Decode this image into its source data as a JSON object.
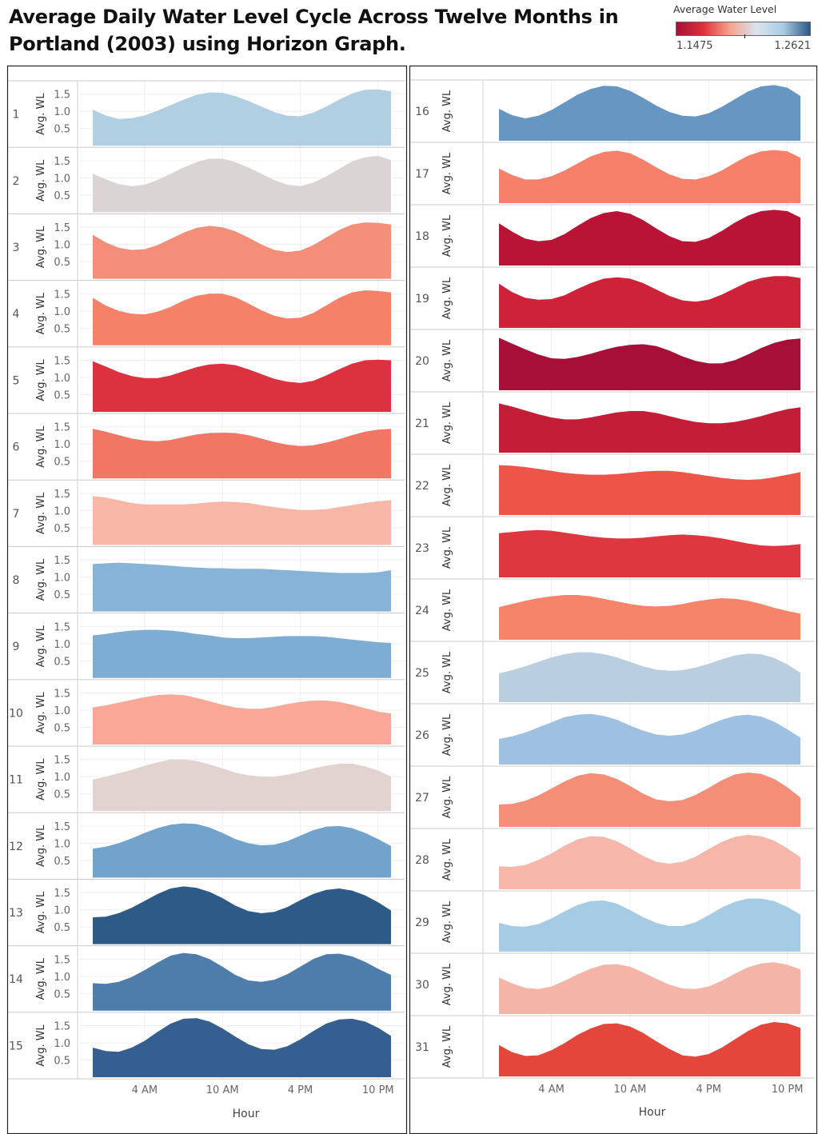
{
  "title": "Average Daily Water Level Cycle Across Twelve Months in Portland (2003) using Horizon Graph.",
  "legend": {
    "title": "Average Water Level",
    "min_label": "1.1475",
    "max_label": "1.2621",
    "colors": [
      "#a50f36",
      "#e0303a",
      "#f5a38e",
      "#d8e4ee",
      "#a9cbe4",
      "#2a5784"
    ]
  },
  "chart_data": {
    "type": "area",
    "x_field": "Hour",
    "xlabel": "Hour",
    "ylabel": "Avg. WL",
    "x_ticks": [
      "4 AM",
      "10 AM",
      "4 PM",
      "10 PM"
    ],
    "x_tick_hours": [
      4,
      10,
      16,
      22
    ],
    "x_range": [
      0,
      23
    ],
    "left_y_ticks": [
      0.5,
      1.0,
      1.5
    ],
    "left_y_tick_labels": [
      "0.5",
      "1.0",
      "1.5"
    ],
    "left_ylim": [
      0,
      1.75
    ],
    "right_ylim": [
      0,
      1.75
    ],
    "series": [
      {
        "name": "1",
        "color": "#b0cfe3",
        "values": [
          1.05,
          0.88,
          0.78,
          0.8,
          0.88,
          1.02,
          1.18,
          1.34,
          1.48,
          1.55,
          1.54,
          1.44,
          1.3,
          1.14,
          0.98,
          0.87,
          0.86,
          0.96,
          1.14,
          1.34,
          1.52,
          1.63,
          1.64,
          1.58
        ]
      },
      {
        "name": "2",
        "color": "#dad5d4",
        "values": [
          1.12,
          0.96,
          0.82,
          0.76,
          0.8,
          0.94,
          1.12,
          1.3,
          1.46,
          1.56,
          1.56,
          1.46,
          1.3,
          1.12,
          0.94,
          0.8,
          0.76,
          0.86,
          1.04,
          1.26,
          1.48,
          1.6,
          1.64,
          1.52
        ]
      },
      {
        "name": "3",
        "color": "#f58e78",
        "values": [
          1.28,
          1.06,
          0.9,
          0.84,
          0.86,
          0.98,
          1.16,
          1.34,
          1.48,
          1.54,
          1.5,
          1.38,
          1.2,
          1.0,
          0.84,
          0.78,
          0.82,
          0.98,
          1.2,
          1.42,
          1.58,
          1.64,
          1.63,
          1.58
        ]
      },
      {
        "name": "4",
        "color": "#f58168",
        "values": [
          1.38,
          1.16,
          1.0,
          0.92,
          0.9,
          0.98,
          1.12,
          1.3,
          1.44,
          1.5,
          1.5,
          1.4,
          1.22,
          1.02,
          0.86,
          0.78,
          0.8,
          0.94,
          1.16,
          1.38,
          1.54,
          1.6,
          1.58,
          1.54
        ]
      },
      {
        "name": "5",
        "color": "#dc313f",
        "values": [
          1.47,
          1.32,
          1.16,
          1.04,
          0.98,
          0.98,
          1.06,
          1.18,
          1.3,
          1.38,
          1.4,
          1.36,
          1.24,
          1.1,
          0.96,
          0.88,
          0.84,
          0.9,
          1.06,
          1.24,
          1.4,
          1.5,
          1.52,
          1.5
        ]
      },
      {
        "name": "6",
        "color": "#f27664",
        "values": [
          1.44,
          1.36,
          1.26,
          1.16,
          1.1,
          1.08,
          1.12,
          1.2,
          1.28,
          1.32,
          1.33,
          1.32,
          1.26,
          1.16,
          1.06,
          0.98,
          0.94,
          0.96,
          1.04,
          1.14,
          1.26,
          1.36,
          1.42,
          1.44
        ]
      },
      {
        "name": "7",
        "color": "#f8b6a6",
        "values": [
          1.42,
          1.38,
          1.3,
          1.22,
          1.18,
          1.18,
          1.18,
          1.18,
          1.2,
          1.24,
          1.26,
          1.25,
          1.22,
          1.16,
          1.1,
          1.05,
          1.02,
          1.02,
          1.04,
          1.1,
          1.16,
          1.22,
          1.27,
          1.3
        ]
      },
      {
        "name": "8",
        "color": "#86b3d7",
        "values": [
          1.38,
          1.4,
          1.42,
          1.4,
          1.38,
          1.36,
          1.33,
          1.3,
          1.28,
          1.26,
          1.26,
          1.24,
          1.24,
          1.24,
          1.22,
          1.2,
          1.18,
          1.16,
          1.14,
          1.12,
          1.12,
          1.12,
          1.14,
          1.2
        ]
      },
      {
        "name": "9",
        "color": "#7eadd3",
        "values": [
          1.24,
          1.28,
          1.34,
          1.38,
          1.4,
          1.4,
          1.38,
          1.34,
          1.28,
          1.24,
          1.18,
          1.16,
          1.16,
          1.18,
          1.2,
          1.22,
          1.22,
          1.22,
          1.2,
          1.16,
          1.12,
          1.08,
          1.04,
          1.02
        ]
      },
      {
        "name": "10",
        "color": "#f9a898",
        "values": [
          1.08,
          1.14,
          1.22,
          1.3,
          1.38,
          1.44,
          1.46,
          1.44,
          1.36,
          1.26,
          1.16,
          1.08,
          1.04,
          1.04,
          1.1,
          1.18,
          1.24,
          1.28,
          1.28,
          1.24,
          1.16,
          1.06,
          0.96,
          0.9
        ]
      },
      {
        "name": "11",
        "color": "#e0d3d0",
        "values": [
          0.92,
          1.0,
          1.1,
          1.2,
          1.32,
          1.42,
          1.5,
          1.5,
          1.46,
          1.36,
          1.24,
          1.12,
          1.04,
          1.0,
          1.0,
          1.06,
          1.14,
          1.24,
          1.32,
          1.38,
          1.38,
          1.3,
          1.18,
          1.0
        ]
      },
      {
        "name": "12",
        "color": "#71a3cc",
        "values": [
          0.84,
          0.9,
          1.0,
          1.14,
          1.3,
          1.44,
          1.54,
          1.58,
          1.56,
          1.46,
          1.3,
          1.12,
          1.0,
          0.94,
          0.96,
          1.06,
          1.22,
          1.38,
          1.48,
          1.5,
          1.44,
          1.3,
          1.12,
          0.92
        ]
      },
      {
        "name": "13",
        "color": "#2d5a87",
        "values": [
          0.78,
          0.8,
          0.9,
          1.06,
          1.26,
          1.46,
          1.62,
          1.68,
          1.64,
          1.52,
          1.34,
          1.12,
          0.96,
          0.9,
          0.94,
          1.08,
          1.28,
          1.46,
          1.58,
          1.62,
          1.56,
          1.42,
          1.22,
          0.98
        ]
      },
      {
        "name": "14",
        "color": "#4e7cab",
        "values": [
          0.8,
          0.78,
          0.84,
          0.98,
          1.18,
          1.4,
          1.6,
          1.68,
          1.64,
          1.5,
          1.28,
          1.04,
          0.88,
          0.84,
          0.9,
          1.06,
          1.28,
          1.5,
          1.64,
          1.66,
          1.58,
          1.42,
          1.22,
          1.04
        ]
      },
      {
        "name": "15",
        "color": "#345f90",
        "values": [
          0.86,
          0.76,
          0.74,
          0.86,
          1.06,
          1.32,
          1.56,
          1.7,
          1.72,
          1.62,
          1.42,
          1.18,
          0.96,
          0.82,
          0.8,
          0.9,
          1.1,
          1.34,
          1.56,
          1.68,
          1.7,
          1.62,
          1.44,
          1.2
        ]
      },
      {
        "name": "16",
        "color": "#6697c2",
        "values": [
          1.0,
          0.8,
          0.7,
          0.78,
          0.96,
          1.2,
          1.44,
          1.62,
          1.72,
          1.7,
          1.56,
          1.34,
          1.1,
          0.9,
          0.78,
          0.76,
          0.86,
          1.06,
          1.3,
          1.54,
          1.7,
          1.74,
          1.66,
          1.4
        ]
      },
      {
        "name": "17",
        "color": "#f6806a",
        "values": [
          1.08,
          0.88,
          0.74,
          0.74,
          0.84,
          1.02,
          1.24,
          1.46,
          1.6,
          1.64,
          1.56,
          1.36,
          1.12,
          0.9,
          0.76,
          0.74,
          0.84,
          1.02,
          1.26,
          1.48,
          1.62,
          1.66,
          1.62,
          1.42
        ]
      },
      {
        "name": "18",
        "color": "#b91436",
        "values": [
          1.32,
          1.06,
          0.84,
          0.76,
          0.8,
          0.98,
          1.24,
          1.48,
          1.64,
          1.7,
          1.62,
          1.42,
          1.16,
          0.92,
          0.76,
          0.74,
          0.86,
          1.08,
          1.34,
          1.56,
          1.7,
          1.74,
          1.7,
          1.5
        ]
      },
      {
        "name": "19",
        "color": "#cd2237",
        "values": [
          1.38,
          1.12,
          0.94,
          0.88,
          0.9,
          1.02,
          1.22,
          1.4,
          1.54,
          1.58,
          1.54,
          1.4,
          1.2,
          1.0,
          0.86,
          0.82,
          0.88,
          1.04,
          1.24,
          1.44,
          1.56,
          1.62,
          1.62,
          1.56
        ]
      },
      {
        "name": "20",
        "color": "#a50f38",
        "values": [
          1.64,
          1.46,
          1.28,
          1.12,
          1.0,
          0.98,
          1.04,
          1.14,
          1.26,
          1.36,
          1.42,
          1.44,
          1.38,
          1.24,
          1.06,
          0.92,
          0.84,
          0.84,
          0.94,
          1.12,
          1.32,
          1.48,
          1.58,
          1.62
        ]
      },
      {
        "name": "21",
        "color": "#c31d37",
        "values": [
          1.54,
          1.44,
          1.32,
          1.2,
          1.1,
          1.04,
          1.04,
          1.1,
          1.18,
          1.26,
          1.3,
          1.3,
          1.24,
          1.14,
          1.04,
          0.96,
          0.92,
          0.92,
          0.96,
          1.04,
          1.14,
          1.26,
          1.36,
          1.42
        ]
      },
      {
        "name": "22",
        "color": "#ee5549",
        "values": [
          1.56,
          1.54,
          1.5,
          1.44,
          1.38,
          1.32,
          1.28,
          1.26,
          1.26,
          1.28,
          1.32,
          1.36,
          1.38,
          1.38,
          1.34,
          1.28,
          1.22,
          1.16,
          1.12,
          1.1,
          1.12,
          1.18,
          1.26,
          1.34
        ]
      },
      {
        "name": "23",
        "color": "#df3740",
        "values": [
          1.38,
          1.42,
          1.46,
          1.48,
          1.46,
          1.4,
          1.34,
          1.28,
          1.24,
          1.22,
          1.22,
          1.24,
          1.28,
          1.32,
          1.34,
          1.32,
          1.28,
          1.22,
          1.14,
          1.06,
          1.0,
          0.98,
          1.0,
          1.04
        ]
      },
      {
        "name": "24",
        "color": "#f58469",
        "values": [
          1.02,
          1.12,
          1.22,
          1.3,
          1.36,
          1.4,
          1.4,
          1.36,
          1.28,
          1.2,
          1.12,
          1.06,
          1.04,
          1.06,
          1.12,
          1.2,
          1.26,
          1.3,
          1.28,
          1.22,
          1.12,
          1.0,
          0.9,
          0.82
        ]
      },
      {
        "name": "25",
        "color": "#b9cfdf",
        "values": [
          0.9,
          1.0,
          1.12,
          1.26,
          1.4,
          1.5,
          1.56,
          1.56,
          1.5,
          1.4,
          1.26,
          1.12,
          1.02,
          0.98,
          1.0,
          1.08,
          1.2,
          1.34,
          1.46,
          1.52,
          1.5,
          1.38,
          1.18,
          0.92
        ]
      },
      {
        "name": "26",
        "color": "#9ec1e2",
        "values": [
          0.8,
          0.88,
          1.0,
          1.16,
          1.32,
          1.48,
          1.56,
          1.58,
          1.52,
          1.4,
          1.22,
          1.06,
          0.94,
          0.9,
          0.94,
          1.06,
          1.24,
          1.4,
          1.52,
          1.56,
          1.5,
          1.34,
          1.1,
          0.84
        ]
      },
      {
        "name": "27",
        "color": "#f58e76",
        "values": [
          0.7,
          0.72,
          0.82,
          0.98,
          1.2,
          1.42,
          1.6,
          1.68,
          1.64,
          1.5,
          1.28,
          1.04,
          0.86,
          0.8,
          0.84,
          1.0,
          1.22,
          1.46,
          1.64,
          1.7,
          1.66,
          1.5,
          1.24,
          0.92
        ]
      },
      {
        "name": "28",
        "color": "#f6b6a9",
        "values": [
          0.72,
          0.7,
          0.76,
          0.92,
          1.12,
          1.36,
          1.56,
          1.66,
          1.64,
          1.5,
          1.28,
          1.04,
          0.86,
          0.8,
          0.86,
          1.02,
          1.26,
          1.48,
          1.64,
          1.7,
          1.66,
          1.52,
          1.28,
          1.0
        ]
      },
      {
        "name": "29",
        "color": "#a6cbe5",
        "values": [
          0.9,
          0.8,
          0.78,
          0.86,
          1.04,
          1.26,
          1.46,
          1.58,
          1.6,
          1.5,
          1.3,
          1.08,
          0.9,
          0.8,
          0.8,
          0.92,
          1.14,
          1.38,
          1.56,
          1.66,
          1.66,
          1.58,
          1.4,
          1.16
        ]
      },
      {
        "name": "30",
        "color": "#f4b4a6",
        "values": [
          1.14,
          0.96,
          0.82,
          0.78,
          0.86,
          1.04,
          1.24,
          1.42,
          1.54,
          1.56,
          1.48,
          1.3,
          1.1,
          0.92,
          0.8,
          0.78,
          0.86,
          1.04,
          1.26,
          1.46,
          1.58,
          1.62,
          1.54,
          1.4
        ]
      },
      {
        "name": "31",
        "color": "#e4463c",
        "values": [
          0.98,
          0.76,
          0.64,
          0.66,
          0.82,
          1.04,
          1.3,
          1.5,
          1.64,
          1.66,
          1.56,
          1.36,
          1.1,
          0.86,
          0.66,
          0.62,
          0.7,
          0.9,
          1.16,
          1.42,
          1.62,
          1.7,
          1.66,
          1.52
        ]
      }
    ]
  }
}
